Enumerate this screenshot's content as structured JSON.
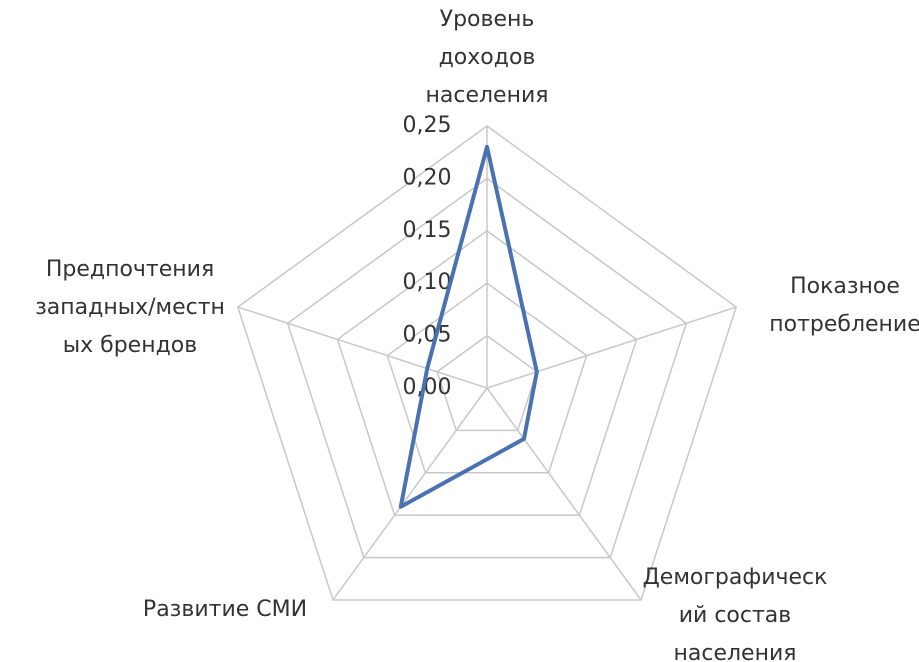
{
  "chart_data": {
    "type": "radar",
    "categories": [
      [
        "Уровень",
        "доходов",
        "населения"
      ],
      [
        "Показное",
        "потребление"
      ],
      [
        "Демографическ",
        "ий состав",
        "населения"
      ],
      [
        "Развитие СМИ"
      ],
      [
        "Предпочтения",
        "западных/местн",
        "ых брендов"
      ]
    ],
    "series": [
      {
        "color": "#4a72b0",
        "values": [
          0.23,
          0.05,
          0.06,
          0.14,
          0.06
        ]
      }
    ],
    "ylim": [
      0,
      0.25
    ],
    "yticks": [
      {
        "value": 0,
        "label": "0,00"
      },
      {
        "value": 0.05,
        "label": "0,05"
      },
      {
        "value": 0.1,
        "label": "0,10"
      },
      {
        "value": 0.15,
        "label": "0,15"
      },
      {
        "value": 0.2,
        "label": "0,20"
      },
      {
        "value": 0.25,
        "label": "0,25"
      }
    ],
    "grid": true
  }
}
